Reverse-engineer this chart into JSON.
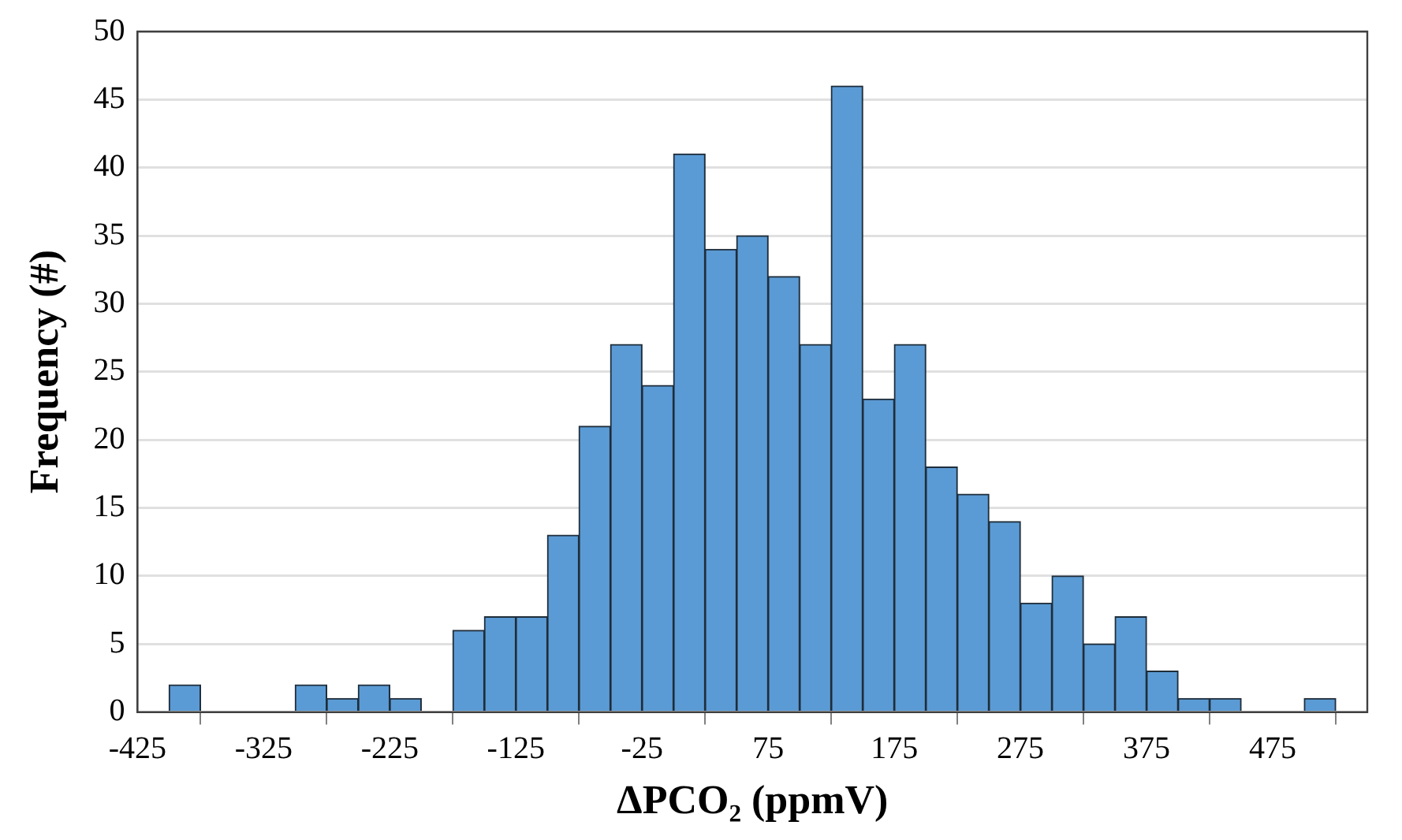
{
  "chart_data": {
    "type": "histogram",
    "xlabel": "ΔPCO₂ (ppmV)",
    "ylabel": "Frequency (#)",
    "bins": [
      -425,
      -400,
      -375,
      -350,
      -325,
      -300,
      -275,
      -250,
      -225,
      -200,
      -175,
      -150,
      -125,
      -100,
      -75,
      -50,
      -25,
      0,
      25,
      50,
      75,
      100,
      125,
      150,
      175,
      200,
      225,
      250,
      275,
      300,
      325,
      350,
      375,
      400,
      425,
      450,
      475,
      500,
      525,
      550
    ],
    "values": [
      0,
      2,
      0,
      0,
      0,
      2,
      1,
      2,
      1,
      0,
      6,
      7,
      7,
      13,
      21,
      27,
      24,
      41,
      34,
      35,
      32,
      27,
      46,
      23,
      27,
      18,
      16,
      14,
      8,
      10,
      5,
      7,
      3,
      1,
      1,
      0,
      0,
      1,
      0
    ],
    "color": "#5b9bd5",
    "xlim": [
      -425,
      550
    ],
    "xticks": [
      -425,
      -325,
      -225,
      -125,
      -25,
      75,
      175,
      275,
      375,
      475
    ],
    "ylim": [
      0,
      50
    ],
    "yticks": [
      0,
      5,
      10,
      15,
      20,
      25,
      30,
      35,
      40,
      45,
      50
    ],
    "grid": "y",
    "legend": false
  }
}
